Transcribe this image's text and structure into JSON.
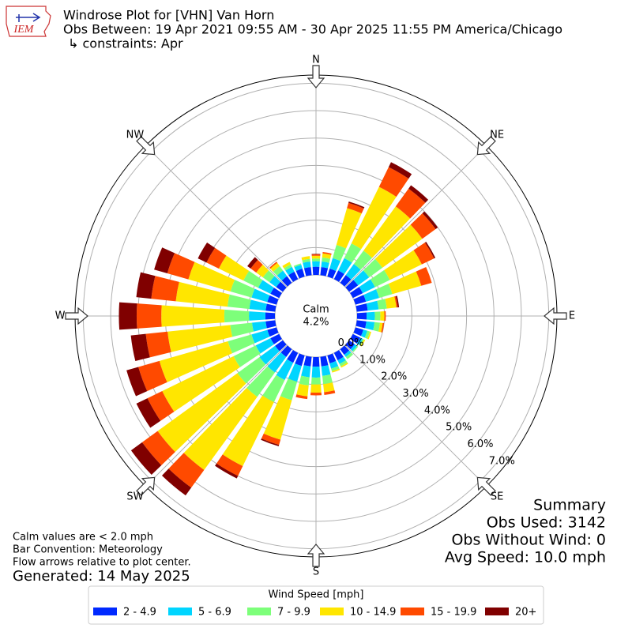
{
  "chart_data": {
    "type": "windrose",
    "logo_text": "IEM",
    "title": "Windrose Plot for [VHN] Van Horn",
    "subtitle": "Obs Between: 19 Apr 2021 09:55 AM - 30 Apr 2025 11:55 PM America/Chicago",
    "constraints": "↳ constraints: Apr",
    "calm_label": "Calm",
    "calm_value": 4.2,
    "calm_value_label": "4.2%",
    "compass": [
      {
        "label": "N",
        "angle": 0
      },
      {
        "label": "NE",
        "angle": 45
      },
      {
        "label": "E",
        "angle": 90
      },
      {
        "label": "SE",
        "angle": 135
      },
      {
        "label": "S",
        "angle": 180
      },
      {
        "label": "SW",
        "angle": 225
      },
      {
        "label": "W",
        "angle": 270
      },
      {
        "label": "NW",
        "angle": 315
      }
    ],
    "rlim": [
      0,
      7.3
    ],
    "rticks": [
      {
        "value": 0,
        "label": "0.0%"
      },
      {
        "value": 1,
        "label": "1.0%"
      },
      {
        "value": 2,
        "label": "2.0%"
      },
      {
        "value": 3,
        "label": "3.0%"
      },
      {
        "value": 4,
        "label": "4.0%"
      },
      {
        "value": 5,
        "label": "5.0%"
      },
      {
        "value": 6,
        "label": "6.0%"
      },
      {
        "value": 7,
        "label": "7.0%"
      }
    ],
    "directions": [
      0,
      10,
      20,
      30,
      40,
      50,
      60,
      70,
      80,
      90,
      100,
      110,
      120,
      130,
      140,
      150,
      160,
      170,
      180,
      190,
      200,
      210,
      220,
      230,
      240,
      250,
      260,
      270,
      280,
      290,
      300,
      310,
      320,
      330,
      340,
      350
    ],
    "legend_title": "Wind Speed [mph]",
    "series": [
      {
        "name": "2 - 4.9",
        "color": "#0029ff",
        "values": [
          0.3,
          0.3,
          0.3,
          0.35,
          0.35,
          0.4,
          0.4,
          0.4,
          0.4,
          0.35,
          0.35,
          0.3,
          0.3,
          0.25,
          0.25,
          0.3,
          0.3,
          0.35,
          0.35,
          0.35,
          0.4,
          0.4,
          0.35,
          0.35,
          0.35,
          0.35,
          0.35,
          0.35,
          0.35,
          0.35,
          0.35,
          0.3,
          0.3,
          0.3,
          0.3,
          0.3
        ]
      },
      {
        "name": "5 - 6.9",
        "color": "#00d5ff",
        "values": [
          0.2,
          0.2,
          0.4,
          0.5,
          0.5,
          0.5,
          0.5,
          0.5,
          0.4,
          0.3,
          0.3,
          0.15,
          0.1,
          0.1,
          0.1,
          0.15,
          0.2,
          0.35,
          0.4,
          0.4,
          0.6,
          0.7,
          0.7,
          0.7,
          0.6,
          0.6,
          0.5,
          0.6,
          0.6,
          0.6,
          0.5,
          0.3,
          0.25,
          0.2,
          0.15,
          0.2
        ]
      },
      {
        "name": "7 - 9.9",
        "color": "#7dff7a",
        "values": [
          0.1,
          0.15,
          0.5,
          0.6,
          0.6,
          0.6,
          0.6,
          0.5,
          0.3,
          0.2,
          0.2,
          0.1,
          0.05,
          0.05,
          0.1,
          0.1,
          0.1,
          0.3,
          0.25,
          0.3,
          0.7,
          0.9,
          1.1,
          1.0,
          0.9,
          0.9,
          0.8,
          0.9,
          0.8,
          0.8,
          0.6,
          0.3,
          0.2,
          0.1,
          0.05,
          0.1
        ]
      },
      {
        "name": "10 - 14.9",
        "color": "#ffe600",
        "values": [
          0.1,
          0.15,
          1.4,
          2.3,
          2.0,
          1.8,
          1.3,
          1.1,
          0.35,
          0.15,
          0.1,
          0.05,
          0.05,
          0,
          0,
          0.05,
          0.05,
          0.3,
          0.3,
          0.4,
          1.5,
          2.6,
          3.3,
          3.6,
          2.9,
          2.6,
          2.3,
          2.3,
          1.9,
          1.6,
          1.0,
          0.3,
          0.15,
          0.1,
          0,
          0.1
        ]
      },
      {
        "name": "15 - 19.9",
        "color": "#ff4a00",
        "values": [
          0.05,
          0.05,
          0.2,
          0.8,
          0.8,
          0.6,
          0.5,
          0.4,
          0.05,
          0.05,
          0.05,
          0,
          0,
          0,
          0,
          0,
          0,
          0.1,
          0.1,
          0.1,
          0.2,
          0.4,
          0.8,
          0.7,
          0.6,
          0.8,
          0.8,
          0.9,
          0.9,
          0.8,
          0.5,
          0.25,
          0.05,
          0,
          0,
          0
        ]
      },
      {
        "name": "20+",
        "color": "#800000",
        "values": [
          0.02,
          0,
          0.05,
          0.2,
          0.15,
          0.1,
          0.05,
          0,
          0.05,
          0,
          0,
          0,
          0,
          0,
          0,
          0,
          0,
          0,
          0,
          0,
          0.05,
          0.1,
          0.35,
          0.5,
          0.45,
          0.45,
          0.55,
          0.65,
          0.55,
          0.5,
          0.35,
          0.15,
          0,
          0,
          0,
          0
        ]
      }
    ],
    "notes": [
      "Calm values are < 2.0 mph",
      "Bar Convention: Meteorology",
      "Flow arrows relative to plot center."
    ],
    "generated": "Generated: 14 May 2025",
    "summary": [
      "Summary",
      "Obs Used: 3142",
      "Obs Without Wind: 0",
      "Avg Speed: 10.0 mph"
    ]
  }
}
